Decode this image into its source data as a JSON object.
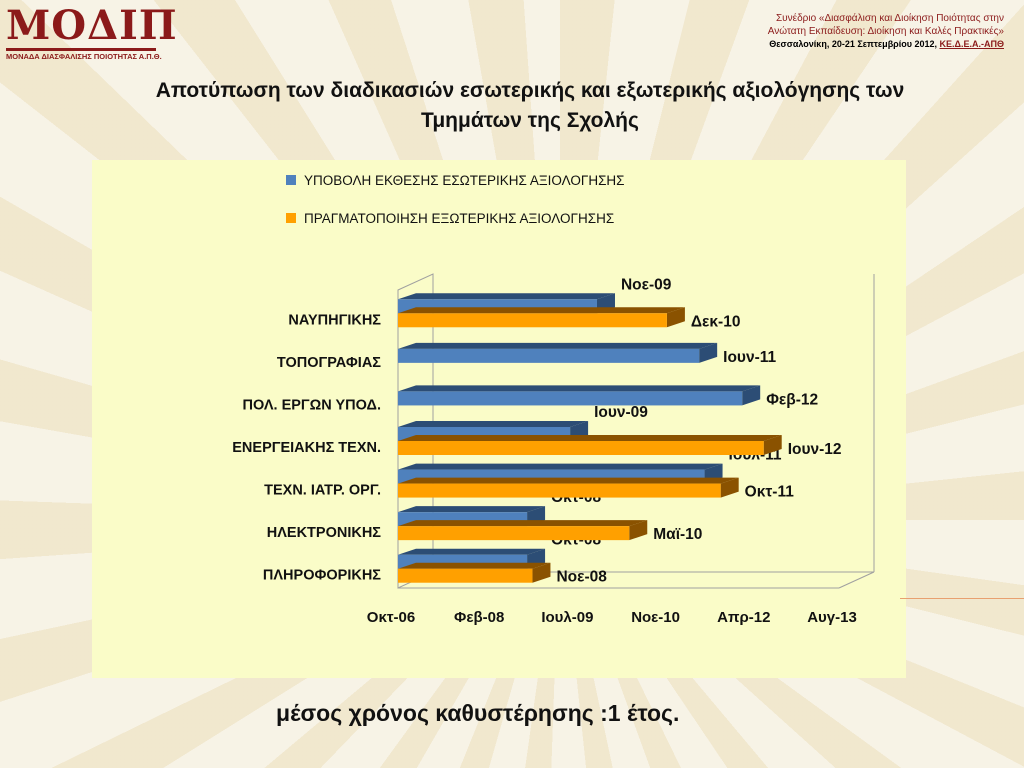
{
  "header": {
    "logo_text": "ΜΟΔΙΠ",
    "logo_subtitle": "ΜΟΝΑΔΑ ΔΙΑΣΦΑΛΙΣΗΣ ΠΟΙΟΤΗΤΑΣ Α.Π.Θ.",
    "conference_line1": "Συνέδριο «Διασφάλιση και Διοίκηση Ποιότητας στην",
    "conference_line2": "Ανώτατη Εκπαίδευση: Διοίκηση και Καλές Πρακτικές»",
    "conference_line3": "Θεσσαλονίκη, 20-21 Σεπτεμβρίου 2012, ",
    "conference_org": "ΚΕ.Δ.Ε.Α.-ΑΠΘ"
  },
  "slide": {
    "title_line1": "Αποτύπωση των διαδικασιών εσωτερικής και εξωτερικής αξιολόγησης των",
    "title_line2": "Τμημάτων της Σχολής",
    "footnote": "μέσος χρόνος καθυστέρησης :1 έτος."
  },
  "colors": {
    "internal": "#4f81bd",
    "internal_dark": "#2c4d75",
    "external": "#ffa000",
    "external_dark": "#8a5200"
  },
  "chart_data": {
    "type": "bar",
    "orientation": "horizontal",
    "three_d": true,
    "legend_position": "top",
    "x_ticks": [
      "Οκτ-06",
      "Φεβ-08",
      "Ιουλ-09",
      "Νοε-10",
      "Απρ-12",
      "Αυγ-13"
    ],
    "xlim": [
      "2006-10",
      "2013-08"
    ],
    "categories": [
      "ΠΛΗΡΟΦΟΡΙΚΗΣ",
      "ΗΛΕΚΤΡΟΝΙΚΗΣ",
      "ΤΕΧΝ. ΙΑΤΡ. ΟΡΓ.",
      "ΕΝΕΡΓΕΙΑΚΗΣ ΤΕΧΝ.",
      "ΠΟΛ. ΕΡΓΩΝ ΥΠΟΔ.",
      "ΤΟΠΟΓΡΑΦΙΑΣ",
      "ΝΑΥΠΗΓΙΚΗΣ"
    ],
    "series": [
      {
        "name": "ΥΠΟΒΟΛΗ ΕΚΘΕΣΗΣ ΕΣΩΤΕΡΙΚΗΣ ΑΞΙΟΛΟΓΗΣΗΣ",
        "values": [
          "2008-10",
          "2008-10",
          "2011-07",
          "2009-06",
          "2012-02",
          "2011-06",
          "2009-11"
        ],
        "labels": [
          "Οκτ-08",
          "Οκτ-08",
          "Ιουλ-11",
          "Ιουν-09",
          "Φεβ-12",
          "Ιουν-11",
          "Νοε-09"
        ]
      },
      {
        "name": "ΠΡΑΓΜΑΤΟΠΟΙΗΣΗ ΕΞΩΤΕΡΙΚΗΣ ΑΞΙΟΛΟΓΗΣΗΣ",
        "values": [
          "2008-11",
          "2010-05",
          "2011-10",
          "2012-06",
          null,
          null,
          "2010-12"
        ],
        "labels": [
          "Νοε-08",
          "Μαϊ-10",
          "Οκτ-11",
          "Ιουν-12",
          null,
          null,
          "Δεκ-10"
        ]
      }
    ]
  }
}
